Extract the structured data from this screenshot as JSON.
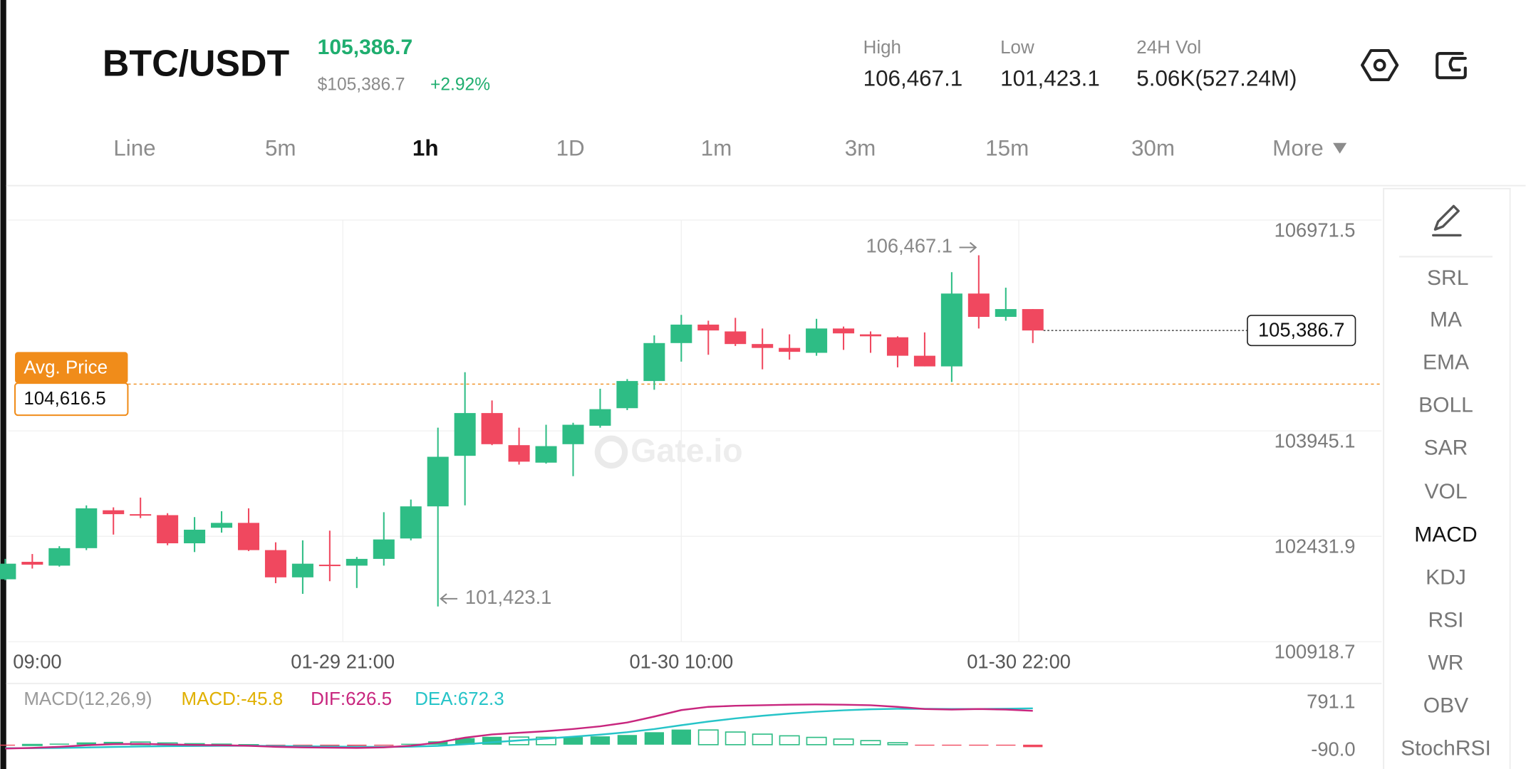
{
  "header": {
    "pair": "BTC/USDT",
    "price": "105,386.7",
    "usd_price": "$105,386.7",
    "change": "+2.92%",
    "high_label": "High",
    "high": "106,467.1",
    "low_label": "Low",
    "low": "101,423.1",
    "vol_label": "24H Vol",
    "vol": "5.06K(527.24M)"
  },
  "tabs": [
    "Line",
    "5m",
    "1h",
    "1D",
    "1m",
    "3m",
    "15m",
    "30m",
    "More"
  ],
  "indicators": [
    "SRL",
    "MA",
    "EMA",
    "BOLL",
    "SAR",
    "VOL",
    "MACD",
    "KDJ",
    "RSI",
    "WR",
    "OBV",
    "StochRSI"
  ],
  "chart_data": {
    "type": "candlestick",
    "watermark": "Gate.io",
    "up_color": "#2ebd85",
    "down_color": "#f0485f",
    "ylim": [
      100918.7,
      106971.5
    ],
    "yticks": [
      106971.5,
      103945.1,
      102431.9,
      100918.7
    ],
    "xtick_labels": [
      "09:00",
      "01-29 21:00",
      "01-30 10:00",
      "01-30 22:00"
    ],
    "grid": true,
    "avg_price_title": "Avg. Price",
    "avg_price": 104616.5,
    "avg_price_label": "104,616.5",
    "avg_color": "#f08c1a",
    "high_annotation": "106,467.1",
    "low_annotation": "101,423.1",
    "candles": {
      "open": [
        101814,
        102065,
        102010,
        102261,
        102805,
        102749,
        102735,
        102331,
        102554,
        102624,
        102233,
        101842,
        102024,
        102010,
        102107,
        102400,
        102861,
        103587,
        104201,
        103740,
        103489,
        103754,
        104019,
        104271,
        104661,
        105206,
        105471,
        105373,
        105192,
        105136,
        105066,
        105415,
        105331,
        105289,
        105024,
        104871,
        105917,
        105582,
        105694
      ],
      "high": [
        102107,
        102177,
        102289,
        102875,
        102847,
        102987,
        102763,
        102707,
        102791,
        102833,
        102345,
        102373,
        102512,
        102135,
        102777,
        102959,
        103991,
        104787,
        104382,
        103991,
        104033,
        104061,
        104550,
        104689,
        105317,
        105610,
        105527,
        105568,
        105415,
        105331,
        105554,
        105443,
        105373,
        105303,
        105359,
        106224,
        106467.1,
        106001,
        105694
      ],
      "low": [
        101800,
        101968,
        101996,
        102233,
        102456,
        102693,
        102303,
        102205,
        102484,
        102219,
        101758,
        101605,
        101786,
        101689,
        102010,
        102373,
        101423.1,
        102875,
        103740,
        103461,
        103475,
        103294,
        103991,
        104243,
        104536,
        104940,
        105038,
        105164,
        104829,
        104968,
        105024,
        105108,
        105066,
        104857,
        104871,
        104647,
        105415,
        105527,
        105206
      ],
      "close": [
        102038,
        102024,
        102261,
        102833,
        102749,
        102735,
        102331,
        102526,
        102624,
        102233,
        101842,
        102038,
        102010,
        102107,
        102386,
        102861,
        103573,
        104201,
        103754,
        103503,
        103726,
        104033,
        104257,
        104661,
        105206,
        105471,
        105387,
        105192,
        105136,
        105080,
        105415,
        105345,
        105303,
        105024,
        104871,
        105917,
        105582,
        105694,
        105386.7
      ]
    },
    "macd": {
      "title": "MACD(12,26,9)",
      "macd_label": "MACD:-45.8",
      "dif_label": "DIF:626.5",
      "dea_label": "DEA:672.3",
      "macd_color": "#e0b000",
      "dif_color": "#c8267e",
      "dea_color": "#26c4c8",
      "ylim": [
        -360,
        1097
      ],
      "yticks": [
        791.1,
        {
          "value": -90,
          "label": "-90.0"
        }
      ],
      "dif": [
        -72,
        -60,
        -40,
        -10,
        10,
        15,
        5,
        -5,
        -10,
        -20,
        -40,
        -50,
        -55,
        -60,
        -50,
        -20,
        40,
        130,
        190,
        220,
        250,
        290,
        340,
        410,
        520,
        640,
        700,
        720,
        730,
        740,
        745,
        740,
        730,
        700,
        660,
        650,
        660,
        650,
        626.5
      ],
      "dea": [
        -65,
        -64,
        -60,
        -52,
        -42,
        -34,
        -27,
        -23,
        -20,
        -20,
        -24,
        -29,
        -34,
        -39,
        -41,
        -37,
        -22,
        8,
        44,
        79,
        113,
        148,
        186,
        231,
        289,
        360,
        428,
        486,
        535,
        576,
        610,
        636,
        655,
        664,
        663,
        661,
        661,
        665,
        672.3
      ],
      "hist": [
        -7,
        4,
        20,
        42,
        52,
        49,
        32,
        18,
        10,
        0,
        -16,
        -21,
        -21,
        -21,
        -9,
        17,
        62,
        122,
        146,
        141,
        137,
        142,
        154,
        179,
        231,
        280,
        272,
        234,
        195,
        164,
        135,
        104,
        75,
        36,
        -3,
        -11,
        -1,
        -15,
        -45.8
      ]
    }
  }
}
